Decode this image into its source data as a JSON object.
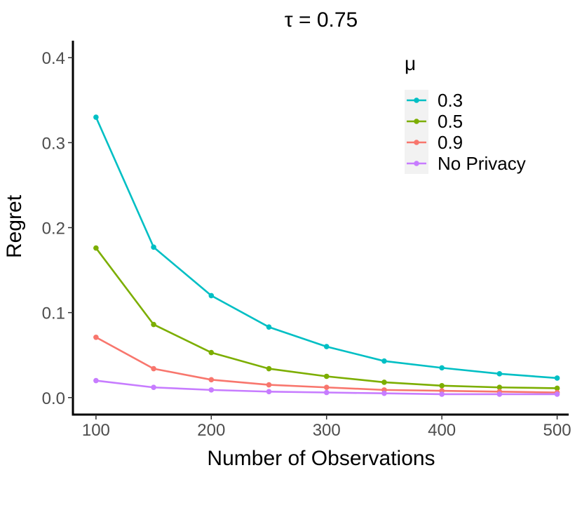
{
  "chart_data": {
    "type": "line",
    "title": "τ = 0.75",
    "xlabel": "Number of Observations",
    "ylabel": "Regret",
    "x": [
      100,
      150,
      200,
      250,
      300,
      350,
      400,
      450,
      500
    ],
    "xlim": [
      80,
      510
    ],
    "ylim": [
      -0.02,
      0.42
    ],
    "xticks": [
      100,
      200,
      300,
      400,
      500
    ],
    "yticks": [
      0.0,
      0.1,
      0.2,
      0.3,
      0.4
    ],
    "xtick_labels": [
      "100",
      "200",
      "300",
      "400",
      "500"
    ],
    "ytick_labels": [
      "0.0",
      "0.1",
      "0.2",
      "0.3",
      "0.4"
    ],
    "grid": false,
    "legend": {
      "title": "μ",
      "position": "top-right"
    },
    "series": [
      {
        "name": "0.3",
        "color": "#00BFC4",
        "values": [
          0.33,
          0.177,
          0.12,
          0.083,
          0.06,
          0.043,
          0.035,
          0.028,
          0.023
        ]
      },
      {
        "name": "0.5",
        "color": "#7CAE00",
        "values": [
          0.176,
          0.086,
          0.053,
          0.034,
          0.025,
          0.018,
          0.014,
          0.012,
          0.011
        ]
      },
      {
        "name": "0.9",
        "color": "#F8766D",
        "values": [
          0.071,
          0.034,
          0.021,
          0.015,
          0.012,
          0.009,
          0.008,
          0.007,
          0.006
        ]
      },
      {
        "name": "No Privacy",
        "color": "#C77CFF",
        "values": [
          0.02,
          0.012,
          0.009,
          0.007,
          0.006,
          0.005,
          0.004,
          0.004,
          0.004
        ]
      }
    ]
  }
}
